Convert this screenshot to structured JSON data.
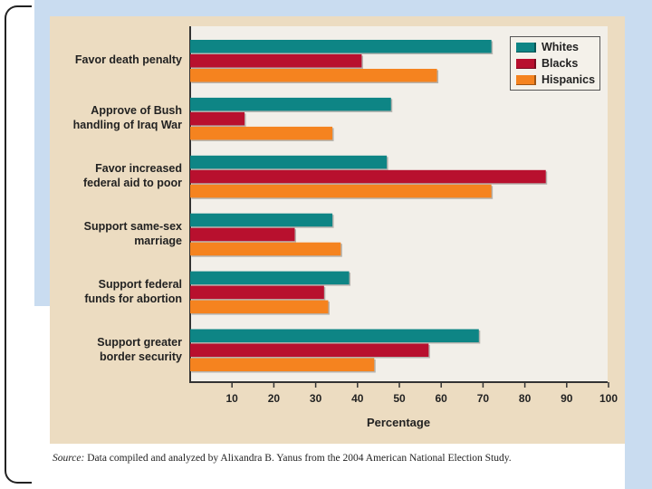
{
  "chart_data": {
    "type": "bar",
    "orientation": "horizontal",
    "title": "",
    "xlabel": "Percentage",
    "ylabel": "",
    "xlim": [
      0,
      100
    ],
    "xticks": [
      10,
      20,
      30,
      40,
      50,
      60,
      70,
      80,
      90,
      100
    ],
    "categories": [
      [
        "Favor death penalty"
      ],
      [
        "Approve of Bush",
        "handling of Iraq War"
      ],
      [
        "Favor increased",
        "federal aid to poor"
      ],
      [
        "Support same-sex",
        "marriage"
      ],
      [
        "Support federal",
        "funds for abortion"
      ],
      [
        "Support greater",
        "border security"
      ]
    ],
    "series": [
      {
        "name": "Whites",
        "color": "#0e8585",
        "values": [
          72,
          48,
          47,
          34,
          38,
          69
        ]
      },
      {
        "name": "Blacks",
        "color": "#b8102e",
        "values": [
          41,
          13,
          85,
          25,
          32,
          57
        ]
      },
      {
        "name": "Hispanics",
        "color": "#f5831f",
        "values": [
          59,
          34,
          72,
          36,
          33,
          44
        ]
      }
    ],
    "legend_position": "top-right"
  },
  "source": {
    "prefix": "Source:",
    "text": "Data compiled and analyzed by Alixandra B. Yanus from the 2004 American National Election Study."
  }
}
